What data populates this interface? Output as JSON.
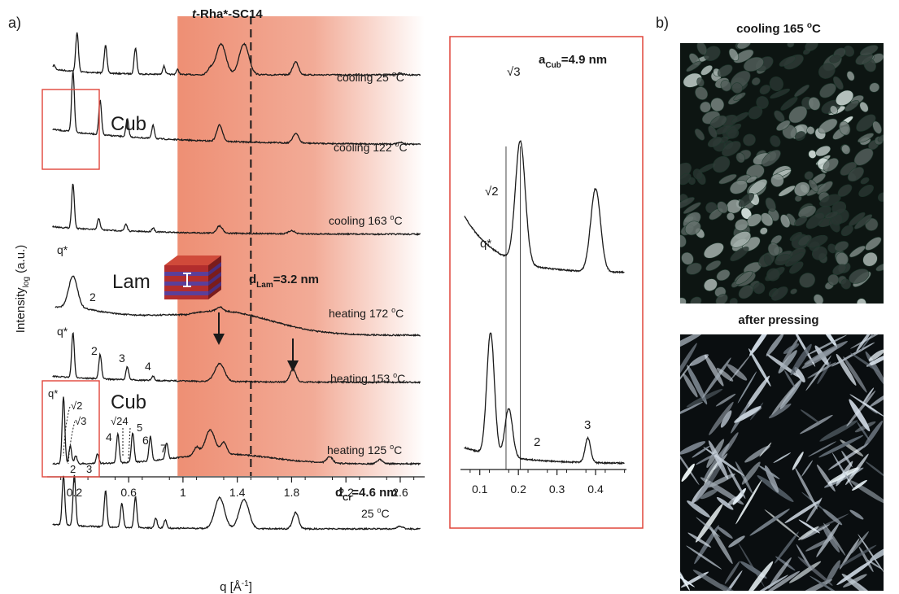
{
  "panel_labels": {
    "a": "a)",
    "b": "b)"
  },
  "chart_data": [
    {
      "type": "line",
      "panel": "a",
      "title": "t-Rha*-SC14",
      "title_italic_prefix": "t",
      "title_rest": "-Rha*-SC14",
      "xlabel": "q [Å⁻¹]",
      "xlabel_base": "q [Å",
      "xlabel_sup": "-1",
      "xlabel_end": "]",
      "ylabel_base": "Intensity",
      "ylabel_sub": "log",
      "ylabel_end": " (a.u.)",
      "xlim": [
        0.0,
        2.78
      ],
      "xticks": [
        "0.2",
        "0.6",
        "1",
        "1.4",
        "1.8",
        "2.2",
        "2.6"
      ],
      "shaded_region": {
        "from": 0.96,
        "to": 2.78,
        "color": "#ee8f74"
      },
      "dashed_line_x": 1.5,
      "series": [
        {
          "name": "cooling 25 °C",
          "label_base": "cooling 25 ",
          "label_sup": "o",
          "label_end": "C",
          "peaks": [
            [
              0.05,
              5
            ],
            [
              0.22,
              48
            ],
            [
              0.43,
              35
            ],
            [
              0.65,
              32
            ],
            [
              0.86,
              10
            ],
            [
              0.96,
              6
            ],
            [
              1.2,
              7
            ],
            [
              1.28,
              38
            ],
            [
              1.45,
              38
            ],
            [
              1.83,
              16
            ],
            [
              2.6,
              2
            ]
          ]
        },
        {
          "name": "cooling 122 °C",
          "label_base": "cooling 122 ",
          "label_sup": "o",
          "label_end": "C",
          "peaks": [
            [
              0.19,
              75
            ],
            [
              0.39,
              42
            ],
            [
              0.59,
              22
            ],
            [
              0.78,
              16
            ],
            [
              1.27,
              20
            ],
            [
              1.83,
              12
            ],
            [
              2.6,
              2
            ]
          ]
        },
        {
          "name": "cooling 163 °C",
          "label_base": "cooling 163 ",
          "label_sup": "o",
          "label_end": "C",
          "peaks": [
            [
              0.19,
              55
            ],
            [
              0.38,
              14
            ],
            [
              0.58,
              8
            ],
            [
              0.78,
              5
            ],
            [
              1.27,
              9
            ],
            [
              1.8,
              4
            ]
          ]
        },
        {
          "name": "heating 172 °C",
          "label_base": "heating 172 ",
          "label_sup": "o",
          "label_end": "C",
          "peaks": [
            [
              0.19,
              38
            ],
            [
              1.27,
              5
            ]
          ]
        },
        {
          "name": "heating 153 °C",
          "label_base": "heating 153 ",
          "label_sup": "o",
          "label_end": "C",
          "peaks": [
            [
              0.19,
              55
            ],
            [
              0.39,
              30
            ],
            [
              0.59,
              16
            ],
            [
              0.78,
              5
            ],
            [
              1.27,
              22
            ],
            [
              1.81,
              16
            ]
          ]
        },
        {
          "name": "heating 125 °C",
          "label_base": "heating 125 ",
          "label_sup": "o",
          "label_end": "C",
          "peaks": [
            [
              0.12,
              82
            ],
            [
              0.17,
              22
            ],
            [
              0.21,
              10
            ],
            [
              0.37,
              12
            ],
            [
              0.52,
              36
            ],
            [
              0.63,
              36
            ],
            [
              0.76,
              30
            ],
            [
              0.88,
              20
            ],
            [
              1.1,
              10
            ],
            [
              1.2,
              30
            ],
            [
              1.3,
              14
            ],
            [
              2.08,
              8
            ],
            [
              2.45,
              5
            ]
          ]
        },
        {
          "name": "25 °C",
          "label_base": "25 ",
          "label_sup": "o",
          "label_end": "C",
          "peaks": [
            [
              0.12,
              60
            ],
            [
              0.2,
              62
            ],
            [
              0.43,
              45
            ],
            [
              0.55,
              30
            ],
            [
              0.65,
              38
            ],
            [
              0.8,
              12
            ],
            [
              0.87,
              10
            ],
            [
              1.27,
              38
            ],
            [
              1.45,
              36
            ],
            [
              1.83,
              20
            ],
            [
              2.6,
              3
            ]
          ]
        }
      ],
      "peak_annotations": {
        "q_star": "q*",
        "two": "2",
        "three": "3",
        "four": "4",
        "five": "5",
        "six": "6",
        "seven": "7",
        "sqrt2": "√2",
        "sqrt3": "√3",
        "sqrt24": "√24"
      },
      "phase_labels": {
        "cub": "Cub",
        "lam": "Lam"
      },
      "d_lam": {
        "base": "d",
        "sub": "Lam",
        "value": "=3.2 nm"
      },
      "d_cr": {
        "base": "d",
        "sub": "Cr",
        "value": "=4.6 nm"
      },
      "arrows_at_q": [
        1.27,
        1.81
      ]
    },
    {
      "type": "line",
      "panel": "a-inset",
      "xlim": [
        0.05,
        0.48
      ],
      "xticks": [
        "0.1",
        "0.2",
        "0.3",
        "0.4"
      ],
      "a_cub": {
        "base": "a",
        "sub": "Cub",
        "value": "=4.9 nm"
      },
      "series": [
        {
          "name": "cooling 122 °C",
          "peaks": [
            [
              0.205,
              150
            ],
            [
              0.4,
              102
            ]
          ]
        },
        {
          "name": "heating 125 °C",
          "peaks": [
            [
              0.128,
              150
            ],
            [
              0.175,
              60
            ],
            [
              0.38,
              30
            ]
          ]
        }
      ],
      "reference_lines_x": [
        0.168,
        0.205
      ],
      "peak_annotations": {
        "sqrt3": "√3",
        "sqrt2": "√2",
        "q_star": "q*",
        "two": "2",
        "three": "3"
      }
    }
  ],
  "micrographs": {
    "top_title_base": "cooling 165 ",
    "top_title_sup": "o",
    "top_title_end": "C",
    "bottom_title": "after pressing"
  }
}
